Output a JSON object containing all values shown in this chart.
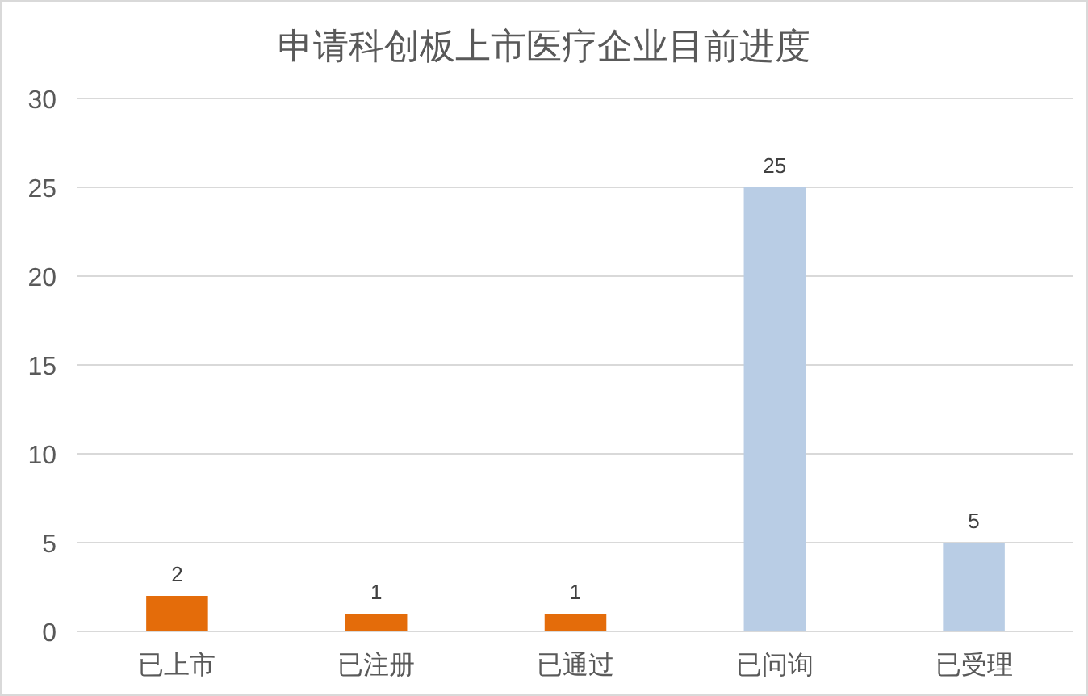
{
  "chart_data": {
    "type": "bar",
    "title": "申请科创板上市医疗企业目前进度",
    "categories": [
      "已上市",
      "已注册",
      "已通过",
      "已问询",
      "已受理"
    ],
    "values": [
      2,
      1,
      1,
      25,
      5
    ],
    "colors": [
      "#e46c0a",
      "#e46c0a",
      "#e46c0a",
      "#b9cde5",
      "#b9cde5"
    ],
    "ylim": [
      0,
      30
    ],
    "yticks": [
      0,
      5,
      10,
      15,
      20,
      25,
      30
    ],
    "grid": "y",
    "data_labels": true
  }
}
